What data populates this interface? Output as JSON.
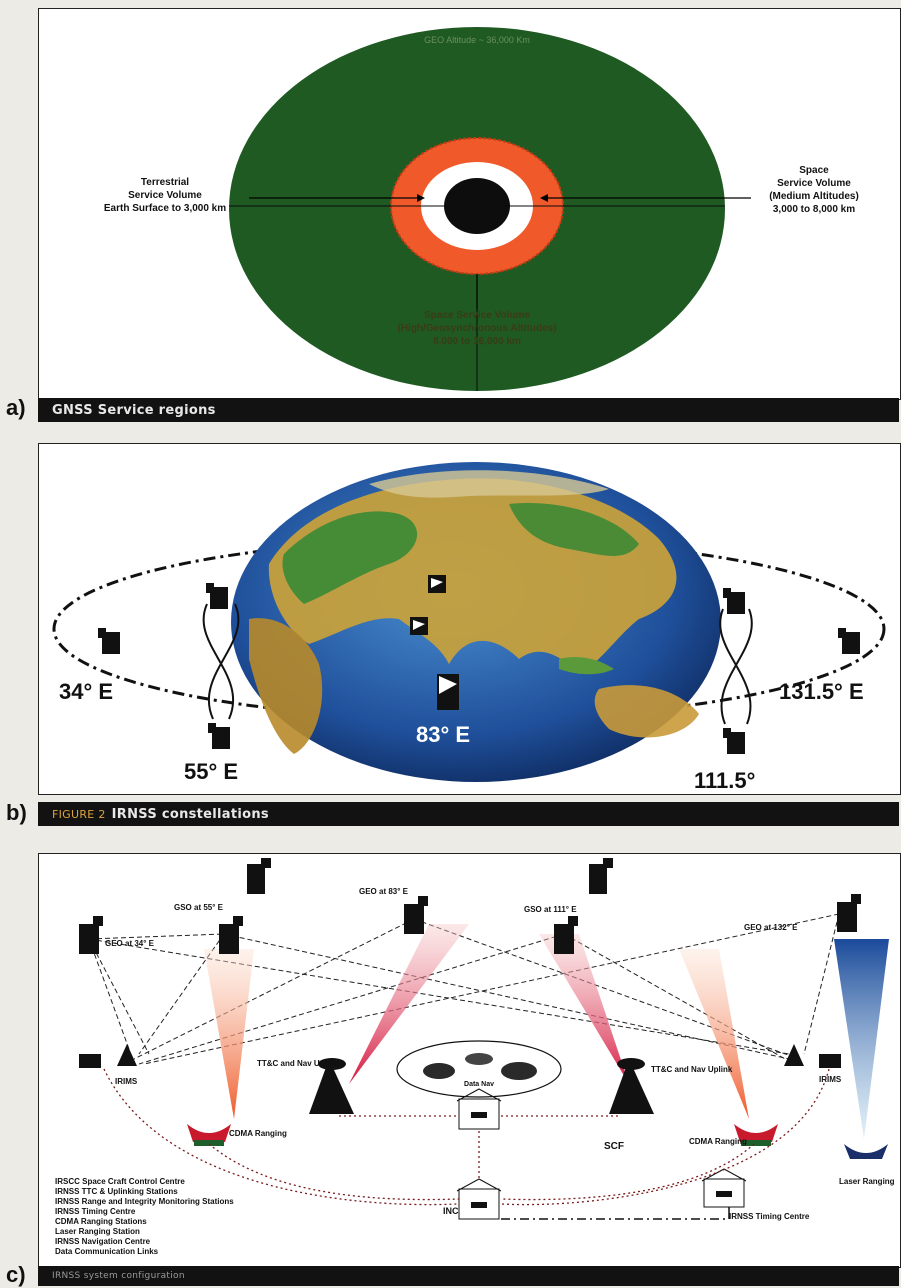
{
  "panel_a": {
    "letter": "a)",
    "caption": "GNSS Service regions",
    "top_label": "GEO Altitude ~ 36,000 Km",
    "terrestrial": [
      "Terrestrial",
      "Service Volume",
      "Earth Surface to 3,000 km"
    ],
    "space_medium": [
      "Space",
      "Service Volume",
      "(Medium Altitudes)",
      "3,000 to 8,000 km"
    ],
    "space_high": [
      "Space Service Volume",
      "(High/Geosynchronous Altitudes)",
      "8,000 to 36,000 km"
    ]
  },
  "panel_b": {
    "letter": "b)",
    "caption_fig": "FIGURE 2",
    "caption": "IRNSS constellations",
    "labels": {
      "e34": "34° E",
      "e55": "55° E",
      "e83": "83° E",
      "e111": "111.5°",
      "e131": "131.5° E"
    }
  },
  "panel_c": {
    "letter": "c)",
    "caption": "IRNSS system configuration",
    "geo": {
      "g34": "GEO at 34° E",
      "g55": "GSO at 55° E",
      "g83": "GEO at 83° E",
      "g111": "GSO at 111° E",
      "g132": "GEO at 132° E"
    },
    "stations": {
      "irims_left": "IRIMS",
      "irims_right": "IRIMS",
      "ttc_left": "TT&C and Nav Uplink",
      "ttc_right": "TT&C and Nav Uplink",
      "cdma_left": "CDMA Ranging",
      "cdma_right": "CDMA Ranging",
      "scf": "SCF",
      "inc": "INC",
      "timing": "IRNSS Timing Centre",
      "laser": "Laser Ranging",
      "center": "Data Nav"
    },
    "legend": [
      "IRSCC Space Craft Control Centre",
      "IRNSS TTC & Uplinking Stations",
      "IRNSS Range and Integrity Monitoring Stations",
      "IRNSS Timing Centre",
      "CDMA Ranging Stations",
      "Laser Ranging Station",
      "IRNSS Navigation Centre",
      "Data Communication Links"
    ]
  }
}
